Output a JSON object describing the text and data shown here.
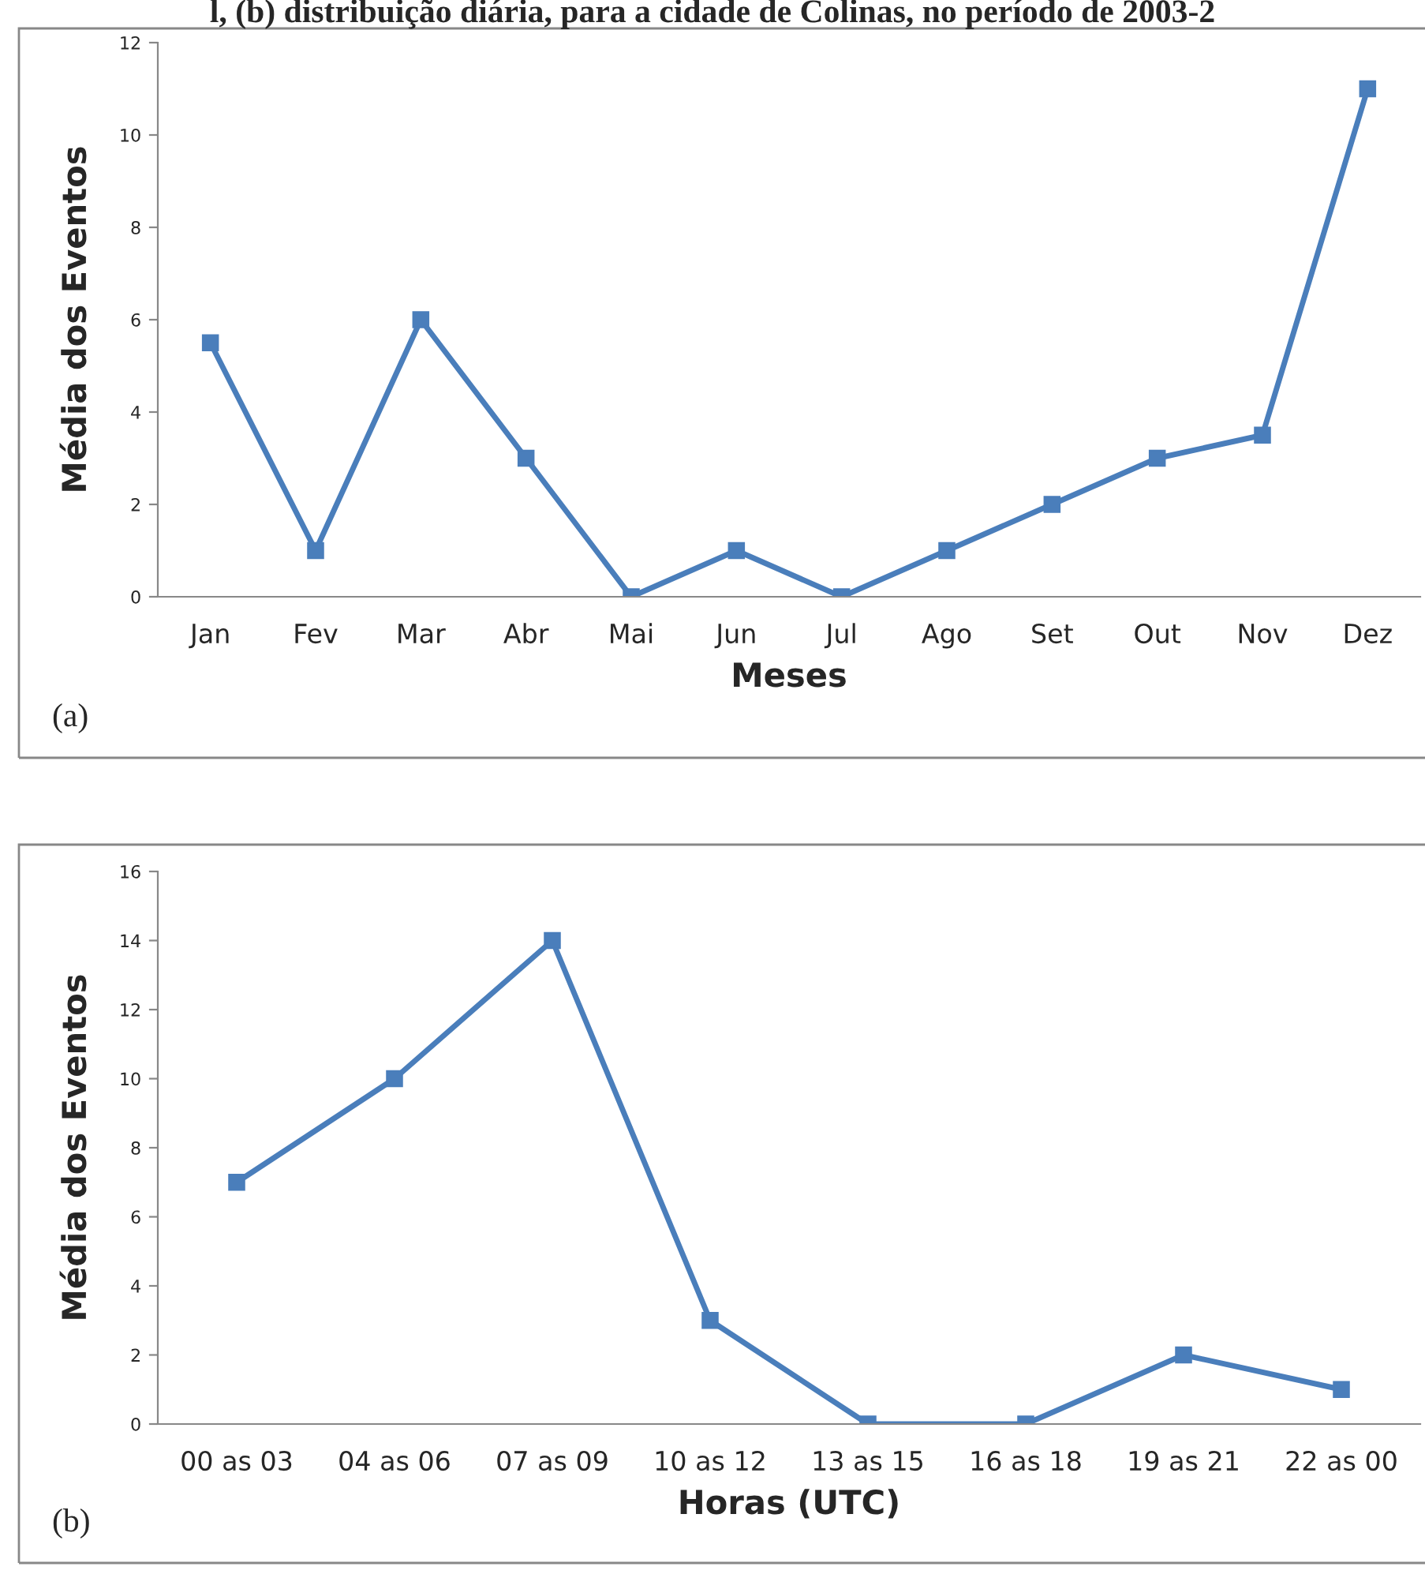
{
  "chart_data": [
    {
      "type": "line",
      "title": "l, (b) distribuição diária, para a cidade de Colinas, no período de 2003-2",
      "categories": [
        "Jan",
        "Fev",
        "Mar",
        "Abr",
        "Mai",
        "Jun",
        "Jul",
        "Ago",
        "Set",
        "Out",
        "Nov",
        "Dez"
      ],
      "series": [
        {
          "color": "#4a7ebb",
          "values": [
            5.5,
            1,
            6,
            3,
            0,
            1,
            0,
            1,
            2,
            3,
            3.5,
            11
          ]
        }
      ],
      "ylim": [
        0,
        12
      ],
      "yticks": [
        0,
        2,
        4,
        6,
        8,
        10,
        12
      ],
      "xlabel": "Meses",
      "ylabel": "Média dos Eventos",
      "annotations": [
        "(a)"
      ],
      "marker": "square",
      "grid": false,
      "legend": false
    },
    {
      "type": "line",
      "categories": [
        "00 as 03",
        "04 as 06",
        "07 as 09",
        "10 as 12",
        "13 as 15",
        "16 as 18",
        "19 as 21",
        "22 as 00"
      ],
      "series": [
        {
          "color": "#4a7ebb",
          "values": [
            7,
            10,
            14,
            3,
            0,
            0,
            2,
            1
          ]
        }
      ],
      "ylim": [
        0,
        16
      ],
      "yticks": [
        0,
        2,
        4,
        6,
        8,
        10,
        12,
        14,
        16
      ],
      "xlabel": "Horas (UTC)",
      "ylabel": "Média dos Eventos",
      "annotations": [
        "(b)"
      ],
      "marker": "square",
      "grid": false,
      "legend": false
    }
  ]
}
